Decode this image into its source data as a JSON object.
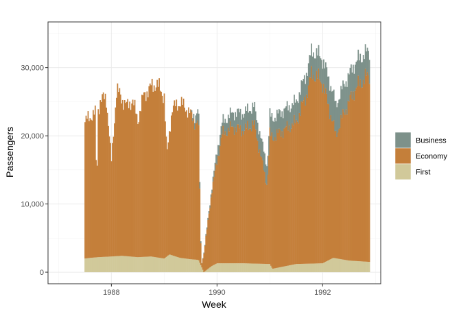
{
  "chart_data": {
    "type": "area",
    "stacked": true,
    "xlabel": "Week",
    "ylabel": "Passengers",
    "x_ticks": [
      1988,
      1990,
      1992
    ],
    "y_ticks": [
      0,
      10000,
      20000,
      30000
    ],
    "y_tick_labels": [
      "0",
      "10,000",
      "20,000",
      "30,000"
    ],
    "xlim": [
      1986.8,
      1993.1
    ],
    "ylim": [
      -1700,
      36700
    ],
    "grid": true,
    "legend_position": "right",
    "legend": [
      "Business",
      "Economy",
      "First"
    ],
    "colors": {
      "Business": "#7d918a",
      "Economy": "#c47f3a",
      "First": "#d1c99a"
    },
    "stack_order": [
      "First",
      "Economy",
      "Business"
    ],
    "series": [
      {
        "name": "First",
        "points": [
          [
            1987.5,
            2000
          ],
          [
            1987.6,
            2100
          ],
          [
            1987.75,
            2200
          ],
          [
            1988.0,
            2300
          ],
          [
            1988.2,
            2400
          ],
          [
            1988.5,
            2200
          ],
          [
            1988.75,
            2300
          ],
          [
            1989.0,
            2000
          ],
          [
            1989.1,
            2600
          ],
          [
            1989.3,
            2100
          ],
          [
            1989.5,
            1900
          ],
          [
            1989.65,
            1800
          ],
          [
            1989.75,
            0
          ],
          [
            1989.9,
            900
          ],
          [
            1990.0,
            1300
          ],
          [
            1990.5,
            1300
          ],
          [
            1991.0,
            1200
          ],
          [
            1991.05,
            500
          ],
          [
            1991.5,
            1200
          ],
          [
            1992.0,
            1300
          ],
          [
            1992.2,
            2100
          ],
          [
            1992.5,
            1700
          ],
          [
            1992.9,
            1500
          ]
        ]
      },
      {
        "name": "Economy",
        "points": [
          [
            1987.5,
            20000
          ],
          [
            1987.55,
            20500
          ],
          [
            1987.7,
            21200
          ],
          [
            1987.72,
            9000
          ],
          [
            1987.75,
            21800
          ],
          [
            1987.8,
            23000
          ],
          [
            1987.9,
            23500
          ],
          [
            1988.0,
            14000
          ],
          [
            1988.1,
            24500
          ],
          [
            1988.2,
            23000
          ],
          [
            1988.3,
            22000
          ],
          [
            1988.4,
            23000
          ],
          [
            1988.5,
            20000
          ],
          [
            1988.6,
            23500
          ],
          [
            1988.7,
            24500
          ],
          [
            1988.85,
            25500
          ],
          [
            1989.0,
            23800
          ],
          [
            1989.05,
            14800
          ],
          [
            1989.15,
            21500
          ],
          [
            1989.3,
            22800
          ],
          [
            1989.45,
            21800
          ],
          [
            1989.6,
            20000
          ],
          [
            1989.65,
            20400
          ],
          [
            1989.7,
            0
          ],
          [
            1989.9,
            11000
          ],
          [
            1990.0,
            15000
          ],
          [
            1990.1,
            19000
          ],
          [
            1990.3,
            20000
          ],
          [
            1990.5,
            19500
          ],
          [
            1990.7,
            20500
          ],
          [
            1990.95,
            11500
          ],
          [
            1991.0,
            19000
          ],
          [
            1991.2,
            19800
          ],
          [
            1991.5,
            20800
          ],
          [
            1991.7,
            25000
          ],
          [
            1991.8,
            28000
          ],
          [
            1992.0,
            26500
          ],
          [
            1992.1,
            23000
          ],
          [
            1992.25,
            18000
          ],
          [
            1992.4,
            21500
          ],
          [
            1992.6,
            25000
          ],
          [
            1992.75,
            26500
          ],
          [
            1992.9,
            27500
          ]
        ]
      },
      {
        "name": "Business",
        "points": [
          [
            1987.5,
            0
          ],
          [
            1989.0,
            0
          ],
          [
            1989.5,
            0
          ],
          [
            1989.65,
            1800
          ],
          [
            1989.7,
            0
          ],
          [
            1989.9,
            500
          ],
          [
            1990.0,
            1500
          ],
          [
            1990.5,
            2500
          ],
          [
            1991.0,
            2800
          ],
          [
            1991.5,
            3000
          ],
          [
            1992.0,
            3500
          ],
          [
            1992.2,
            4500
          ],
          [
            1992.5,
            4000
          ],
          [
            1992.9,
            3500
          ]
        ]
      }
    ]
  }
}
